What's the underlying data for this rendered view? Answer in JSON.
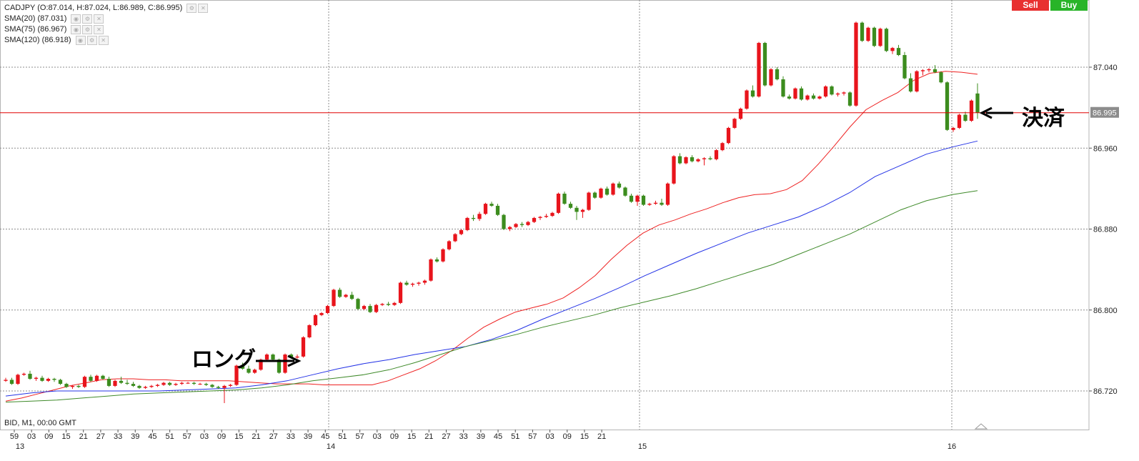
{
  "legend": {
    "symbol_ohlc": "CADJPY (O:87.014, H:87.024, L:86.989, C:86.995)",
    "sma20": "SMA(20) (87.031)",
    "sma75": "SMA(75) (86.967)",
    "sma120": "SMA(120) (86.918)"
  },
  "buttons": {
    "sell": "Sell",
    "buy": "Buy"
  },
  "footer": {
    "bid_label": "BID, M1, 00:00 GMT"
  },
  "annotations": {
    "long_label": "ロング",
    "close_label": "決済"
  },
  "colors": {
    "up_candle": "#e8141c",
    "down_candle": "#3c8c1e",
    "sma20": "#ee2222",
    "sma75": "#2433e6",
    "sma120": "#3f8a2a",
    "current_price_line": "#e00000",
    "grid": "#8c8c8c",
    "price_tag_bg": "#8c8c8c"
  },
  "chart_data": {
    "type": "candlestick",
    "symbol": "CADJPY",
    "timeframe": "M1",
    "y_axis": {
      "ticks": [
        "87.040",
        "86.960",
        "86.880",
        "86.800",
        "86.720"
      ],
      "current_price": "86.995",
      "range": [
        86.705,
        87.088
      ]
    },
    "x_axis": {
      "minute_labels": [
        "59",
        "03",
        "09",
        "15",
        "21",
        "27",
        "33",
        "39",
        "45",
        "51",
        "57",
        "03",
        "09",
        "15",
        "21",
        "27",
        "33",
        "39",
        "45",
        "51",
        "57",
        "03",
        "09",
        "15",
        "21",
        "27",
        "33",
        "39",
        "45",
        "51",
        "57",
        "03",
        "09",
        "15",
        "21"
      ],
      "hour_labels": [
        "13",
        "14",
        "15",
        "16"
      ]
    },
    "grid": true,
    "candles": [
      [
        86.73,
        86.733,
        86.729,
        86.731
      ],
      [
        86.731,
        86.733,
        86.726,
        86.727
      ],
      [
        86.727,
        86.737,
        86.726,
        86.736
      ],
      [
        86.736,
        86.738,
        86.735,
        86.737
      ],
      [
        86.737,
        86.74,
        86.731,
        86.732
      ],
      [
        86.732,
        86.734,
        86.73,
        86.733
      ],
      [
        86.733,
        86.735,
        86.729,
        86.73
      ],
      [
        86.73,
        86.733,
        86.729,
        86.732
      ],
      [
        86.732,
        86.733,
        86.729,
        86.731
      ],
      [
        86.731,
        86.732,
        86.726,
        86.727
      ],
      [
        86.727,
        86.728,
        86.723,
        86.724
      ],
      [
        86.724,
        86.726,
        86.722,
        86.725
      ],
      [
        86.725,
        86.726,
        86.723,
        86.724
      ],
      [
        86.724,
        86.735,
        86.723,
        86.734
      ],
      [
        86.734,
        86.736,
        86.729,
        86.73
      ],
      [
        86.73,
        86.736,
        86.729,
        86.735
      ],
      [
        86.735,
        86.736,
        86.731,
        86.732
      ],
      [
        86.732,
        86.734,
        86.724,
        86.725
      ],
      [
        86.725,
        86.731,
        86.724,
        86.73
      ],
      [
        86.73,
        86.734,
        86.727,
        86.728
      ],
      [
        86.728,
        86.731,
        86.726,
        86.727
      ],
      [
        86.727,
        86.729,
        86.724,
        86.725
      ],
      [
        86.725,
        86.726,
        86.722,
        86.723
      ],
      [
        86.723,
        86.725,
        86.722,
        86.724
      ],
      [
        86.724,
        86.726,
        86.723,
        86.725
      ],
      [
        86.725,
        86.727,
        86.724,
        86.726
      ],
      [
        86.726,
        86.729,
        86.725,
        86.728
      ],
      [
        86.728,
        86.729,
        86.725,
        86.726
      ],
      [
        86.726,
        86.728,
        86.725,
        86.727
      ],
      [
        86.727,
        86.729,
        86.726,
        86.728
      ],
      [
        86.728,
        86.729,
        86.727,
        86.728
      ],
      [
        86.728,
        86.729,
        86.726,
        86.727
      ],
      [
        86.727,
        86.728,
        86.726,
        86.727
      ],
      [
        86.727,
        86.728,
        86.725,
        86.726
      ],
      [
        86.726,
        86.727,
        86.723,
        86.724
      ],
      [
        86.724,
        86.725,
        86.722,
        86.723
      ],
      [
        86.723,
        86.726,
        86.708,
        86.725
      ],
      [
        86.725,
        86.727,
        86.724,
        86.726
      ],
      [
        86.726,
        86.746,
        86.725,
        86.745
      ],
      [
        86.745,
        86.748,
        86.741,
        86.742
      ],
      [
        86.742,
        86.745,
        86.737,
        86.738
      ],
      [
        86.738,
        86.742,
        86.737,
        86.741
      ],
      [
        86.741,
        86.752,
        86.74,
        86.751
      ],
      [
        86.751,
        86.757,
        86.75,
        86.756
      ],
      [
        86.756,
        86.757,
        86.75,
        86.751
      ],
      [
        86.751,
        86.752,
        86.737,
        86.738
      ],
      [
        86.738,
        86.757,
        86.737,
        86.756
      ],
      [
        86.756,
        86.757,
        86.752,
        86.753
      ],
      [
        86.753,
        86.756,
        86.752,
        86.754
      ],
      [
        86.754,
        86.774,
        86.753,
        86.773
      ],
      [
        86.773,
        86.786,
        86.772,
        86.785
      ],
      [
        86.785,
        86.796,
        86.784,
        86.795
      ],
      [
        86.795,
        86.798,
        86.794,
        86.797
      ],
      [
        86.797,
        86.805,
        86.796,
        86.804
      ],
      [
        86.804,
        86.821,
        86.803,
        86.82
      ],
      [
        86.82,
        86.822,
        86.812,
        86.813
      ],
      [
        86.813,
        86.816,
        86.812,
        86.815
      ],
      [
        86.815,
        86.818,
        86.81,
        86.811
      ],
      [
        86.811,
        86.812,
        86.8,
        86.801
      ],
      [
        86.801,
        86.805,
        86.8,
        86.804
      ],
      [
        86.804,
        86.806,
        86.797,
        86.798
      ],
      [
        86.798,
        86.806,
        86.797,
        86.805
      ],
      [
        86.805,
        86.807,
        86.804,
        86.806
      ],
      [
        86.806,
        86.808,
        86.804,
        86.805
      ],
      [
        86.805,
        86.808,
        86.804,
        86.807
      ],
      [
        86.807,
        86.828,
        86.806,
        86.827
      ],
      [
        86.827,
        86.829,
        86.824,
        86.825
      ],
      [
        86.825,
        86.827,
        86.823,
        86.826
      ],
      [
        86.826,
        86.828,
        86.824,
        86.827
      ],
      [
        86.827,
        86.83,
        86.825,
        86.829
      ],
      [
        86.829,
        86.851,
        86.828,
        86.85
      ],
      [
        86.85,
        86.852,
        86.847,
        86.848
      ],
      [
        86.848,
        86.861,
        86.847,
        86.86
      ],
      [
        86.86,
        86.869,
        86.859,
        86.868
      ],
      [
        86.868,
        86.876,
        86.867,
        86.875
      ],
      [
        86.875,
        86.88,
        86.874,
        86.879
      ],
      [
        86.879,
        86.892,
        86.878,
        86.891
      ],
      [
        86.891,
        86.894,
        86.888,
        86.89
      ],
      [
        86.89,
        86.897,
        86.888,
        86.895
      ],
      [
        86.895,
        86.906,
        86.894,
        86.905
      ],
      [
        86.905,
        86.907,
        86.902,
        86.903
      ],
      [
        86.903,
        86.905,
        86.893,
        86.894
      ],
      [
        86.894,
        86.895,
        86.879,
        86.88
      ],
      [
        86.88,
        86.883,
        86.878,
        86.882
      ],
      [
        86.882,
        86.886,
        86.881,
        86.885
      ],
      [
        86.885,
        86.887,
        86.882,
        86.884
      ],
      [
        86.884,
        86.888,
        86.883,
        86.887
      ],
      [
        86.887,
        86.892,
        86.886,
        86.891
      ],
      [
        86.891,
        86.893,
        86.889,
        86.892
      ],
      [
        86.892,
        86.895,
        86.891,
        86.893
      ],
      [
        86.893,
        86.897,
        86.892,
        86.896
      ],
      [
        86.896,
        86.916,
        86.895,
        86.915
      ],
      [
        86.915,
        86.917,
        86.904,
        86.905
      ],
      [
        86.905,
        86.907,
        86.9,
        86.901
      ],
      [
        86.901,
        86.903,
        86.889,
        86.897
      ],
      [
        86.897,
        86.9,
        86.891,
        86.899
      ],
      [
        86.899,
        86.917,
        86.898,
        86.916
      ],
      [
        86.916,
        86.917,
        86.91,
        86.911
      ],
      [
        86.911,
        86.921,
        86.91,
        86.92
      ],
      [
        86.92,
        86.922,
        86.913,
        86.914
      ],
      [
        86.914,
        86.926,
        86.913,
        86.925
      ],
      [
        86.925,
        86.927,
        86.92,
        86.921
      ],
      [
        86.921,
        86.922,
        86.912,
        86.913
      ],
      [
        86.913,
        86.915,
        86.906,
        86.907
      ],
      [
        86.907,
        86.914,
        86.903,
        86.913
      ],
      [
        86.913,
        86.914,
        86.903,
        86.904
      ],
      [
        86.904,
        86.906,
        86.903,
        86.905
      ],
      [
        86.905,
        86.908,
        86.904,
        86.906
      ],
      [
        86.906,
        86.91,
        86.903,
        86.904
      ],
      [
        86.904,
        86.926,
        86.903,
        86.925
      ],
      [
        86.925,
        86.953,
        86.924,
        86.952
      ],
      [
        86.952,
        86.955,
        86.944,
        86.945
      ],
      [
        86.945,
        86.952,
        86.944,
        86.951
      ],
      [
        86.951,
        86.953,
        86.946,
        86.947
      ],
      [
        86.947,
        86.95,
        86.946,
        86.949
      ],
      [
        86.949,
        86.951,
        86.943,
        86.95
      ],
      [
        86.95,
        86.952,
        86.948,
        86.949
      ],
      [
        86.949,
        86.959,
        86.948,
        86.958
      ],
      [
        86.958,
        86.966,
        86.957,
        86.965
      ],
      [
        86.965,
        86.981,
        86.964,
        86.98
      ],
      [
        86.98,
        86.99,
        86.979,
        86.989
      ],
      [
        86.989,
        87.0,
        86.988,
        86.999
      ],
      [
        86.999,
        87.018,
        86.998,
        87.017
      ],
      [
        87.017,
        87.022,
        87.01,
        87.011
      ],
      [
        87.011,
        87.065,
        87.01,
        87.064
      ],
      [
        87.064,
        87.065,
        87.021,
        87.022
      ],
      [
        87.022,
        87.039,
        87.021,
        87.038
      ],
      [
        87.038,
        87.04,
        87.027,
        87.028
      ],
      [
        87.028,
        87.031,
        87.01,
        87.011
      ],
      [
        87.011,
        87.013,
        87.008,
        87.009
      ],
      [
        87.009,
        87.02,
        87.008,
        87.019
      ],
      [
        87.019,
        87.021,
        87.007,
        87.008
      ],
      [
        87.008,
        87.013,
        87.007,
        87.012
      ],
      [
        87.012,
        87.014,
        87.008,
        87.009
      ],
      [
        87.009,
        87.012,
        87.008,
        87.011
      ],
      [
        87.011,
        87.022,
        87.01,
        87.021
      ],
      [
        87.021,
        87.022,
        87.012,
        87.013
      ],
      [
        87.013,
        87.015,
        87.011,
        87.014
      ],
      [
        87.014,
        87.016,
        87.012,
        87.015
      ],
      [
        87.015,
        87.016,
        87.001,
        87.002
      ],
      [
        87.002,
        87.085,
        87.001,
        87.084
      ],
      [
        87.084,
        87.085,
        87.065,
        87.066
      ],
      [
        87.066,
        87.08,
        87.065,
        87.079
      ],
      [
        87.079,
        87.08,
        87.06,
        87.061
      ],
      [
        87.061,
        87.079,
        87.06,
        87.078
      ],
      [
        87.078,
        87.079,
        87.055,
        87.056
      ],
      [
        87.056,
        87.06,
        87.053,
        87.059
      ],
      [
        87.059,
        87.062,
        87.051,
        87.052
      ],
      [
        87.052,
        87.055,
        87.028,
        87.029
      ],
      [
        87.029,
        87.034,
        87.015,
        87.016
      ],
      [
        87.016,
        87.037,
        87.015,
        87.036
      ],
      [
        87.036,
        87.038,
        87.032,
        87.037
      ],
      [
        87.037,
        87.039,
        87.035,
        87.038
      ],
      [
        87.038,
        87.042,
        87.034,
        87.035
      ],
      [
        87.035,
        87.036,
        87.024,
        87.025
      ],
      [
        87.025,
        87.026,
        86.977,
        86.978
      ],
      [
        86.978,
        86.981,
        86.976,
        86.98
      ],
      [
        86.98,
        86.994,
        86.979,
        86.993
      ],
      [
        86.993,
        86.996,
        86.986,
        86.987
      ],
      [
        86.987,
        87.008,
        86.986,
        87.007
      ],
      [
        87.014,
        87.024,
        86.989,
        86.995
      ]
    ],
    "series": [
      {
        "name": "SMA(20)",
        "values": [
          86.71,
          86.713,
          86.717,
          86.721,
          86.725,
          86.728,
          86.731,
          86.732,
          86.732,
          86.731,
          86.731,
          86.73,
          86.73,
          86.73,
          86.73,
          86.729,
          86.728,
          86.727,
          86.727,
          86.727,
          86.726,
          86.726,
          86.726,
          86.726,
          86.73,
          86.736,
          86.742,
          86.75,
          86.76,
          86.772,
          86.783,
          86.791,
          86.798,
          86.802,
          86.806,
          86.812,
          86.822,
          86.834,
          86.85,
          86.864,
          86.876,
          86.884,
          86.889,
          86.895,
          86.9,
          86.906,
          86.911,
          86.914,
          86.915,
          86.919,
          86.928,
          86.944,
          86.962,
          86.981,
          86.998,
          87.007,
          87.015,
          87.027,
          87.034,
          87.036,
          87.035,
          87.033
        ]
      },
      {
        "name": "SMA(75)",
        "values": [
          86.715,
          86.718,
          86.72,
          86.72,
          86.72,
          86.72,
          86.72,
          86.721,
          86.722,
          86.723,
          86.726,
          86.73,
          86.736,
          86.742,
          86.747,
          86.751,
          86.756,
          86.76,
          86.764,
          86.771,
          86.78,
          86.791,
          86.801,
          86.811,
          86.822,
          86.834,
          86.845,
          86.856,
          86.866,
          86.876,
          86.884,
          86.892,
          86.903,
          86.916,
          86.932,
          86.943,
          86.954,
          86.961,
          86.967
        ]
      },
      {
        "name": "SMA(120)",
        "values": [
          86.709,
          86.71,
          86.711,
          86.713,
          86.715,
          86.717,
          86.718,
          86.719,
          86.72,
          86.721,
          86.723,
          86.726,
          86.73,
          86.733,
          86.736,
          86.741,
          86.748,
          86.756,
          86.764,
          86.77,
          86.776,
          86.783,
          86.789,
          86.795,
          86.802,
          86.808,
          86.814,
          86.821,
          86.829,
          86.837,
          86.845,
          86.855,
          86.865,
          86.875,
          86.887,
          86.899,
          86.908,
          86.914,
          86.918
        ]
      }
    ]
  }
}
